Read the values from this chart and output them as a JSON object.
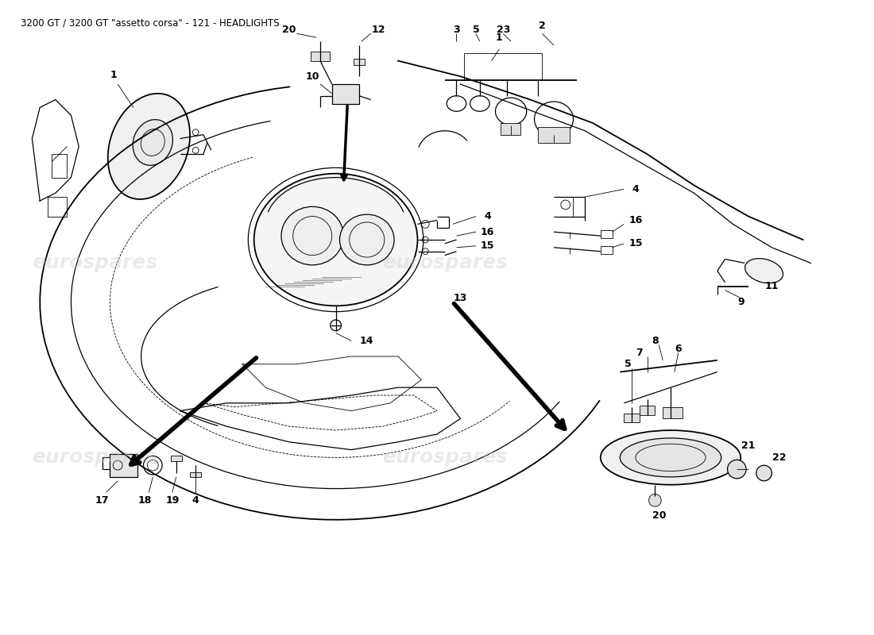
{
  "title": "3200 GT / 3200 GT \"assetto corsa\" - 121 - HEADLIGHTS",
  "title_fontsize": 8.5,
  "bg_color": "#ffffff",
  "line_color": "#000000",
  "watermark_color": "#cccccc",
  "label_fontsize": 9,
  "label_fontweight": "bold",
  "fig_width": 11.0,
  "fig_height": 8.0,
  "dpi": 100,
  "wm_positions": [
    [
      3,
      47,
      "eurospares"
    ],
    [
      48,
      47,
      "eurospares"
    ],
    [
      3,
      22,
      "eurospares"
    ],
    [
      48,
      22,
      "eurospares"
    ]
  ]
}
